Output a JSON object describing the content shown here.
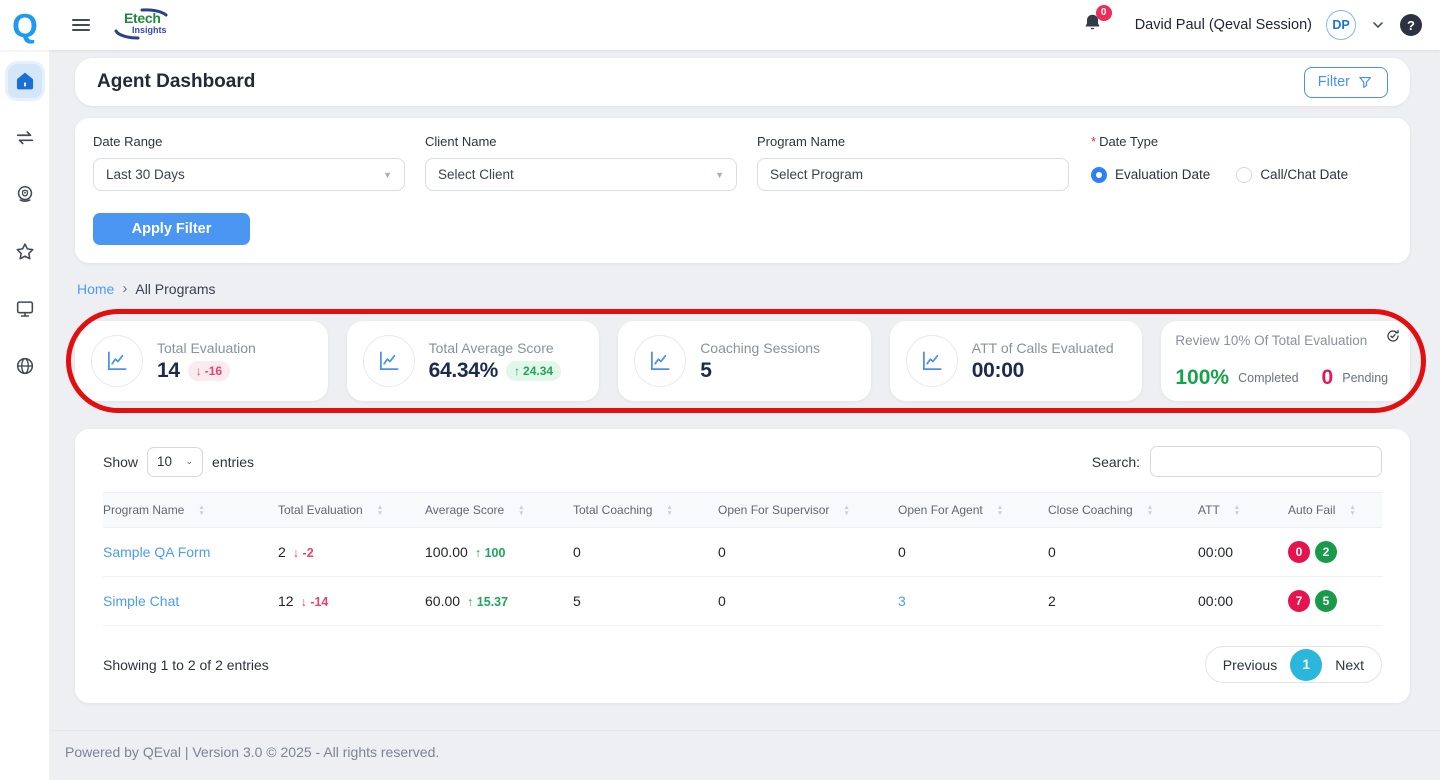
{
  "topbar": {
    "logo_q": "Q",
    "brand_line1": "Etech",
    "brand_line2": "Insights",
    "notification_count": "0",
    "user_name": "David Paul (Qeval Session)",
    "avatar_initials": "DP",
    "help_glyph": "?"
  },
  "sidebar": {
    "items": [
      "home",
      "swap-arrows",
      "webcam",
      "star",
      "monitor",
      "globe"
    ],
    "active": "home"
  },
  "page": {
    "title": "Agent Dashboard",
    "filter_button": "Filter"
  },
  "filters": {
    "date_range": {
      "label": "Date Range",
      "value": "Last 30 Days"
    },
    "client": {
      "label": "Client Name",
      "value": "Select Client"
    },
    "program": {
      "label": "Program Name",
      "value": "Select Program"
    },
    "date_type": {
      "label": "Date Type",
      "required_mark": "*",
      "option1": "Evaluation Date",
      "option2": "Call/Chat Date",
      "selected": "Evaluation Date"
    },
    "apply_button": "Apply Filter"
  },
  "breadcrumb": {
    "home": "Home",
    "separator": "›",
    "current": "All Programs"
  },
  "stat_cards": [
    {
      "title": "Total Evaluation",
      "value": "14",
      "delta_arrow": "↓",
      "delta": "-16",
      "delta_dir": "down"
    },
    {
      "title": "Total Average Score",
      "value": "64.34%",
      "delta_arrow": "↑",
      "delta": "24.34",
      "delta_dir": "up"
    },
    {
      "title": "Coaching Sessions",
      "value": "5"
    },
    {
      "title": "ATT of Calls Evaluated",
      "value": "00:00"
    },
    {
      "title": "Review 10% Of Total Evaluation",
      "percent": "100%",
      "completed_label": "Completed",
      "pending_value": "0",
      "pending_label": "Pending"
    }
  ],
  "table": {
    "show_label": "Show",
    "page_size": "10",
    "entries_label": "entries",
    "search_label": "Search:",
    "columns": [
      "Program Name",
      "Total Evaluation",
      "Average Score",
      "Total Coaching",
      "Open For Supervisor",
      "Open For Agent",
      "Close Coaching",
      "ATT",
      "Auto Fail"
    ],
    "rows": [
      {
        "program": "Sample QA Form",
        "total_evaluation": "2",
        "delta_arrow": "↓",
        "delta": "-2",
        "average_score": "100.00",
        "score_arrow": "↑",
        "score_delta": "100",
        "total_coaching": "0",
        "open_supervisor": "0",
        "open_agent": "0",
        "close_coaching": "0",
        "att": "00:00",
        "autofail_red": "0",
        "autofail_green": "2"
      },
      {
        "program": "Simple Chat",
        "total_evaluation": "12",
        "delta_arrow": "↓",
        "delta": "-14",
        "average_score": "60.00",
        "score_arrow": "↑",
        "score_delta": "15.37",
        "total_coaching": "5",
        "open_supervisor": "0",
        "open_agent": "3",
        "close_coaching": "2",
        "att": "00:00",
        "autofail_red": "7",
        "autofail_green": "5"
      }
    ],
    "summary": "Showing 1 to 2 of 2 entries",
    "pagination": {
      "previous": "Previous",
      "page": "1",
      "next": "Next"
    }
  },
  "footer": {
    "text": "Powered by QEval | Version 3.0 © 2025 - All rights reserved."
  },
  "colors": {
    "accent_blue": "#4a90f4",
    "link_blue": "#4b9cf6",
    "danger_pink": "#e5446d",
    "success_green": "#1ea75a",
    "autofail_red": "#e5134e",
    "autofail_green": "#189a4a",
    "pagination_cyan": "#2bb6dc",
    "annotation_red": "#e30e0e",
    "bell_badge_pink": "#ee2b5b",
    "stat_value_navy": "#1b2a4e"
  }
}
